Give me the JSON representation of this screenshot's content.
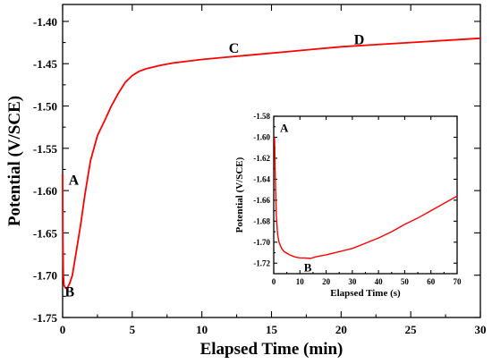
{
  "chart_data": [
    {
      "type": "line",
      "title": "",
      "xlabel": "Elapsed Time (min)",
      "ylabel": "Potential (V/SCE)",
      "xlim": [
        0,
        30
      ],
      "ylim": [
        -1.75,
        -1.38
      ],
      "x_ticks": [
        "0",
        "5",
        "10",
        "15",
        "20",
        "25",
        "30"
      ],
      "y_ticks": [
        "-1.75",
        "-1.70",
        "-1.65",
        "-1.60",
        "-1.55",
        "-1.50",
        "-1.45",
        "-1.40"
      ],
      "grid": false,
      "legend": "none",
      "series": [
        {
          "color": "#ff0000",
          "x": [
            0,
            0.02,
            0.05,
            0.1,
            0.2,
            0.3,
            0.5,
            0.7,
            1.0,
            1.3,
            1.6,
            2.0,
            2.5,
            3.0,
            3.5,
            4.0,
            4.5,
            5.0,
            5.5,
            6.0,
            6.5,
            7.0,
            8.0,
            9.0,
            10.0,
            12.0,
            14.0,
            16.0,
            18.0,
            20.0,
            22.0,
            24.0,
            26.0,
            28.0,
            30.0
          ],
          "y": [
            -1.58,
            -1.66,
            -1.7,
            -1.712,
            -1.715,
            -1.716,
            -1.71,
            -1.7,
            -1.67,
            -1.64,
            -1.605,
            -1.565,
            -1.535,
            -1.518,
            -1.5,
            -1.485,
            -1.472,
            -1.464,
            -1.459,
            -1.456,
            -1.454,
            -1.452,
            -1.449,
            -1.447,
            -1.445,
            -1.442,
            -1.439,
            -1.436,
            -1.433,
            -1.43,
            -1.428,
            -1.426,
            -1.424,
            -1.422,
            -1.42
          ]
        }
      ],
      "annotations": [
        {
          "text": "A",
          "x": 0.8,
          "y": -1.593
        },
        {
          "text": "B",
          "x": 0.5,
          "y": -1.725
        },
        {
          "text": "C",
          "x": 12.3,
          "y": -1.437
        },
        {
          "text": "D",
          "x": 21.3,
          "y": -1.427
        }
      ]
    },
    {
      "type": "line",
      "title": "",
      "xlabel": "Elapsed Time (s)",
      "ylabel": "Potential (V/SCE)",
      "xlim": [
        0,
        70
      ],
      "ylim": [
        -1.73,
        -1.58
      ],
      "x_ticks": [
        "0",
        "10",
        "20",
        "30",
        "40",
        "50",
        "60",
        "70"
      ],
      "y_ticks": [
        "-1.58",
        "-1.60",
        "-1.62",
        "-1.64",
        "-1.66",
        "-1.68",
        "-1.70",
        "-1.72"
      ],
      "grid": false,
      "legend": "none",
      "series": [
        {
          "color": "#ff0000",
          "x": [
            0.3,
            0.6,
            1.0,
            1.5,
            2.0,
            3.0,
            4.0,
            6.0,
            8.0,
            10.0,
            12.0,
            14.0,
            16.0,
            18.0,
            20.0,
            25.0,
            30.0,
            35.0,
            40.0,
            45.0,
            50.0,
            55.0,
            60.0,
            65.0,
            70.0
          ],
          "y": [
            -1.6,
            -1.64,
            -1.675,
            -1.693,
            -1.7,
            -1.706,
            -1.709,
            -1.712,
            -1.714,
            -1.715,
            -1.715,
            -1.7155,
            -1.714,
            -1.713,
            -1.712,
            -1.709,
            -1.706,
            -1.701,
            -1.696,
            -1.69,
            -1.683,
            -1.677,
            -1.67,
            -1.663,
            -1.656
          ]
        }
      ],
      "annotations": [
        {
          "text": "A",
          "x": 4.0,
          "y": -1.595
        },
        {
          "text": "B",
          "x": 13.0,
          "y": -1.728
        }
      ]
    }
  ]
}
